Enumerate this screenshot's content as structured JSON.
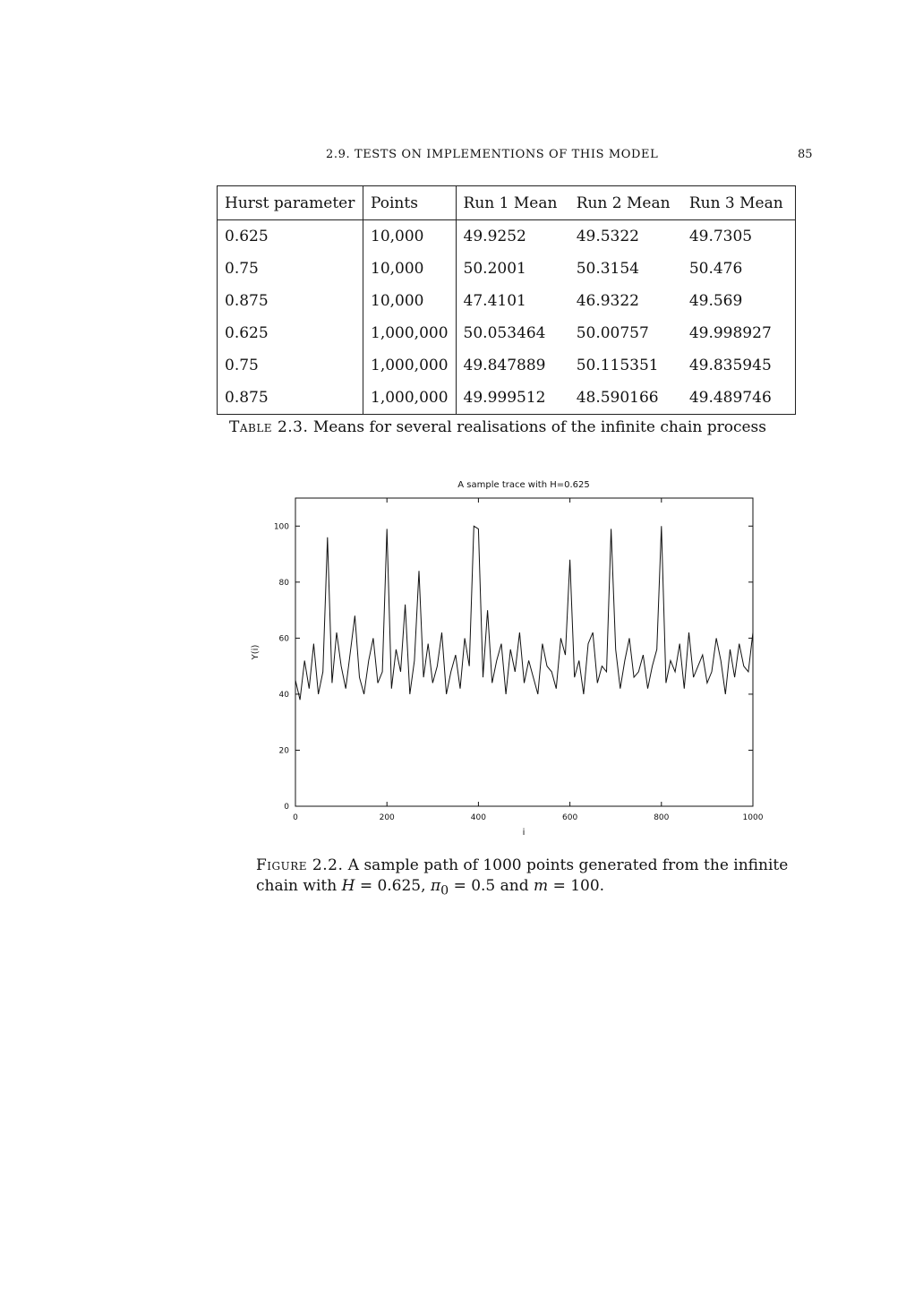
{
  "header": {
    "title": "2.9. TESTS ON IMPLEMENTIONS OF THIS MODEL",
    "page_number": "85"
  },
  "table": {
    "headers": [
      "Hurst parameter",
      "Points",
      "Run 1 Mean",
      "Run 2 Mean",
      "Run 3 Mean"
    ],
    "rows": [
      [
        "0.625",
        "10,000",
        "49.9252",
        "49.5322",
        "49.7305"
      ],
      [
        "0.75",
        "10,000",
        "50.2001",
        "50.3154",
        "50.476"
      ],
      [
        "0.875",
        "10,000",
        "47.4101",
        "46.9322",
        "49.569"
      ],
      [
        "0.625",
        "1,000,000",
        "50.053464",
        "50.00757",
        "49.998927"
      ],
      [
        "0.75",
        "1,000,000",
        "49.847889",
        "50.115351",
        "49.835945"
      ],
      [
        "0.875",
        "1,000,000",
        "49.999512",
        "48.590166",
        "49.489746"
      ]
    ],
    "caption_label": "Table 2.3.",
    "caption_text": "Means for several realisations of the infinite chain process"
  },
  "chart_data": {
    "type": "line",
    "title": "A sample trace with H=0.625",
    "xlabel": "i",
    "ylabel": "Y(i)",
    "xlim": [
      0,
      1000
    ],
    "ylim": [
      0,
      110
    ],
    "xticks": [
      0,
      200,
      400,
      600,
      800,
      1000
    ],
    "yticks": [
      0,
      20,
      40,
      60,
      80,
      100
    ],
    "grid": false,
    "legend": "none",
    "line_color": "#111111",
    "series": [
      {
        "x_step": 10,
        "values": [
          45,
          38,
          52,
          42,
          58,
          40,
          48,
          96,
          44,
          62,
          50,
          42,
          55,
          68,
          46,
          40,
          52,
          60,
          44,
          48,
          99,
          42,
          56,
          48,
          72,
          40,
          52,
          84,
          46,
          58,
          44,
          50,
          62,
          40,
          48,
          54,
          42,
          60,
          50,
          100,
          99,
          46,
          70,
          44,
          52,
          58,
          40,
          56,
          48,
          62,
          44,
          52,
          46,
          40,
          58,
          50,
          48,
          42,
          60,
          54,
          88,
          46,
          52,
          40,
          58,
          62,
          44,
          50,
          48,
          99,
          56,
          42,
          52,
          60,
          46,
          48,
          54,
          42,
          50,
          56,
          100,
          44,
          52,
          48,
          58,
          42,
          62,
          46,
          50,
          54,
          44,
          48,
          60,
          52,
          40,
          56,
          46,
          58,
          50,
          48,
          62
        ]
      }
    ]
  },
  "figure": {
    "caption_label": "Figure 2.2.",
    "caption_text_1": "A sample path of 1000 points generated from the infinite chain with",
    "math_H": "H",
    "eq_H": "= 0.625,",
    "math_pi": "π",
    "pi_sub": "0",
    "eq_pi": "= 0.5 and",
    "math_m": "m",
    "eq_m": "= 100."
  }
}
